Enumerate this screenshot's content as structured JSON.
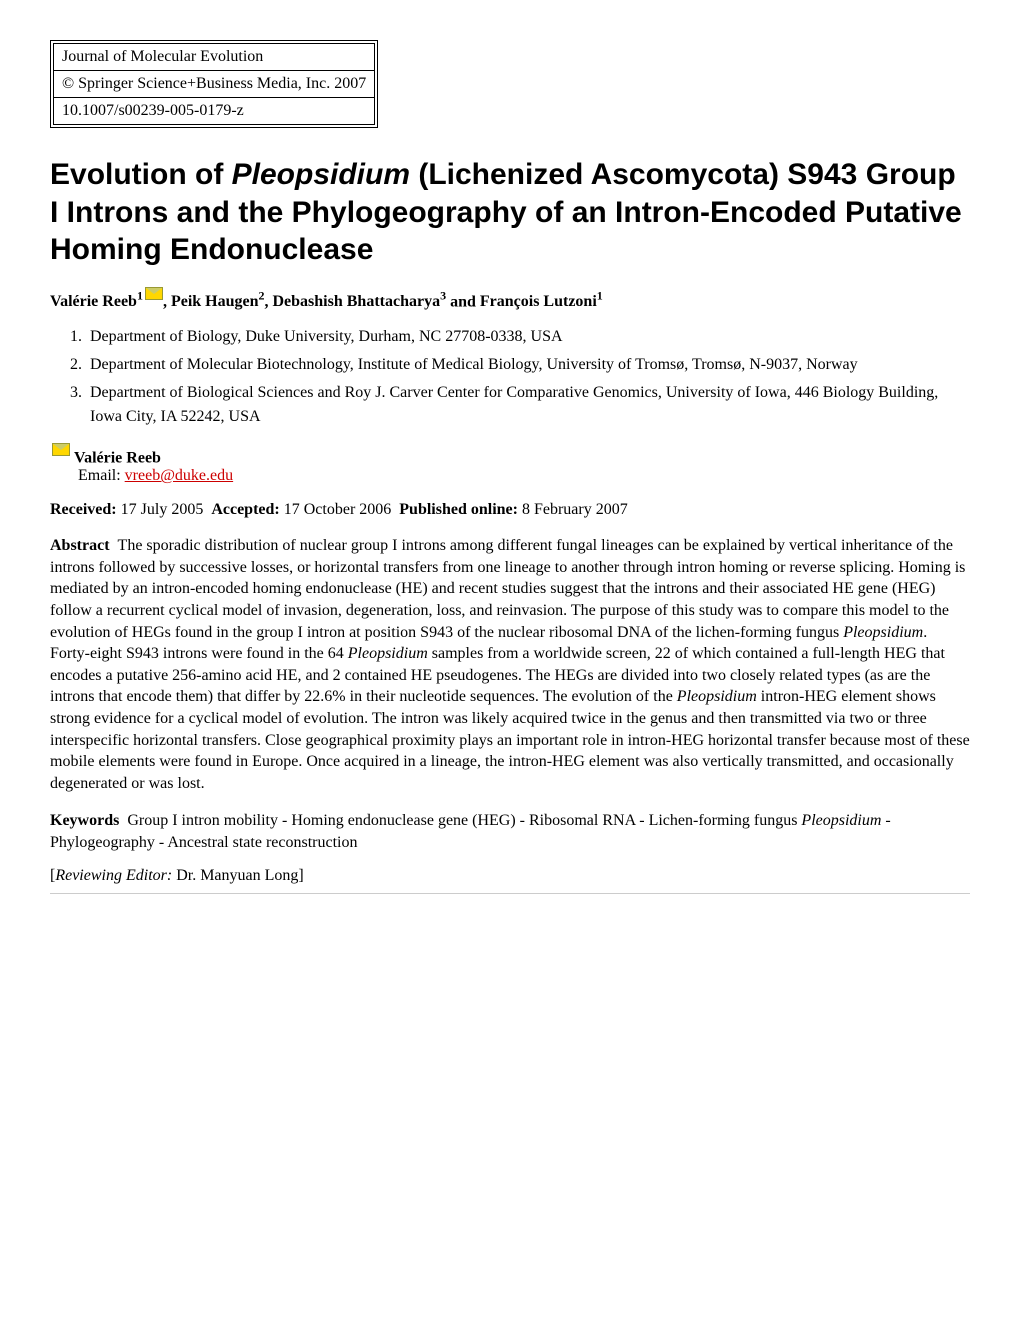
{
  "metaBox": {
    "journal": "Journal of Molecular Evolution",
    "copyright": "© Springer Science+Business Media, Inc. 2007",
    "doi": "10.1007/s00239-005-0179-z"
  },
  "title": {
    "pre": "Evolution of ",
    "italic": "Pleopsidium",
    "post": " (Lichenized Ascomycota) S943 Group I Introns and the Phylogeography of an Intron-Encoded Putative Homing Endonuclease"
  },
  "authors": [
    {
      "name": "Valérie Reeb",
      "sup": "1",
      "mail": true
    },
    {
      "name": "Peik Haugen",
      "sup": "2",
      "mail": false
    },
    {
      "name": "Debashish Bhattacharya",
      "sup": "3",
      "mail": false
    },
    {
      "name": "François Lutzoni",
      "sup": "1",
      "mail": false
    }
  ],
  "affiliations": [
    "Department of Biology, Duke University, Durham, NC 27708-0338, USA",
    "Department of Molecular Biotechnology, Institute of Medical Biology, University of Tromsø, Tromsø, N-9037, Norway",
    "Department of Biological Sciences and Roy J. Carver Center for Comparative Genomics, University of Iowa, 446 Biology Building, Iowa City, IA 52242, USA"
  ],
  "corresponding": {
    "name": "Valérie Reeb",
    "emailLabel": "Email:",
    "email": "vreeb@duke.edu"
  },
  "dates": {
    "receivedLabel": "Received:",
    "received": "17 July 2005",
    "acceptedLabel": "Accepted:",
    "accepted": "17 October 2006",
    "publishedLabel": "Published online:",
    "published": "8 February 2007"
  },
  "abstract": {
    "label": "Abstract",
    "text1": "The sporadic distribution of nuclear group I introns among different fungal lineages can be explained by vertical inheritance of the introns followed by successive losses, or horizontal transfers from one lineage to another through intron homing or reverse splicing. Homing is mediated by an intron-encoded homing endonuclease (HE) and recent studies suggest that the introns and their associated HE gene (HEG) follow a recurrent cyclical model of invasion, degeneration, loss, and reinvasion. The purpose of this study was to compare this model to the evolution of HEGs found in the group I intron at position S943 of the nuclear ribosomal DNA of the lichen-forming fungus ",
    "italic1": "Pleopsidium",
    "text2": ". Forty-eight S943 introns were found in the 64 ",
    "italic2": "Pleopsidium",
    "text3": " samples from a worldwide screen, 22 of which contained a full-length HEG that encodes a putative 256-amino acid HE, and 2 contained HE pseudogenes. The HEGs are divided into two closely related types (as are the introns that encode them) that differ by 22.6% in their nucleotide sequences. The evolution of the ",
    "italic3": "Pleopsidium",
    "text4": " intron-HEG element shows strong evidence for a cyclical model of evolution. The intron was likely acquired twice in the genus and then transmitted via two or three interspecific horizontal transfers. Close geographical proximity plays an important role in intron-HEG horizontal transfer because most of these mobile elements were found in Europe. Once acquired in a lineage, the intron-HEG element was also vertically transmitted, and occasionally degenerated or was lost."
  },
  "keywords": {
    "label": "Keywords",
    "text1": "Group I intron mobility - Homing endonuclease gene (HEG) - Ribosomal RNA - Lichen-forming fungus ",
    "italic": "Pleopsidium",
    "text2": "  - Phylogeography - Ancestral state reconstruction"
  },
  "editor": {
    "label": "Reviewing Editor:",
    "name": "Dr. Manyuan Long"
  }
}
